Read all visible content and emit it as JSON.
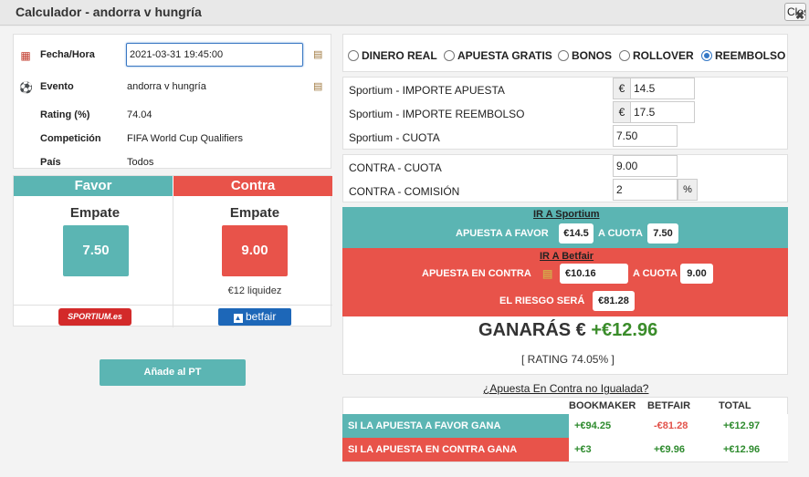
{
  "window": {
    "title": "Calculador - andorra v hungría",
    "close_label": "Close",
    "close_x": "✖"
  },
  "info": {
    "fecha_label": "Fecha/Hora",
    "fecha_value": "2021-03-31 19:45:00",
    "evento_label": "Evento",
    "evento_value": "andorra v hungría",
    "rating_label": "Rating (%)",
    "rating_value": "74.04",
    "competicion_label": "Competición",
    "competicion_value": "FIFA World Cup Qualifiers",
    "pais_label": "País",
    "pais_value": "Todos"
  },
  "favor": {
    "header": "Favor",
    "selection": "Empate",
    "odds": "7.50",
    "bookmaker_logo": "SPORTIUM.es"
  },
  "contra": {
    "header": "Contra",
    "selection": "Empate",
    "odds": "9.00",
    "liquidity": "€12 liquidez",
    "exchange_logo": "betfair"
  },
  "add_button": "Añade al PT",
  "bet_types": {
    "options": [
      "DINERO REAL",
      "APUESTA GRATIS",
      "BONOS",
      "ROLLOVER",
      "REEMBOLSO"
    ],
    "selected": "REEMBOLSO"
  },
  "bookmaker_inputs": {
    "stake_label": "Sportium - IMPORTE APUESTA",
    "stake_value": "14.5",
    "refund_label": "Sportium - IMPORTE REEMBOLSO",
    "refund_value": "17.5",
    "odds_label": "Sportium - CUOTA",
    "odds_value": "7.50",
    "currency": "€"
  },
  "exchange_inputs": {
    "odds_label": "CONTRA - CUOTA",
    "odds_value": "9.00",
    "commission_label": "CONTRA - COMISIÓN",
    "commission_value": "2",
    "percent": "%"
  },
  "sportium_band": {
    "link": "IR A Sportium",
    "favor_text": "APUESTA A FAVOR",
    "favor_amount": "€14.5",
    "cuota_text": "A CUOTA",
    "cuota_value": "7.50"
  },
  "betfair_band": {
    "link": "IR A Betfair",
    "contra_text": "APUESTA EN CONTRA",
    "contra_amount": "€10.16",
    "cuota_text": "A CUOTA",
    "cuota_value": "9.00",
    "risk_text": "EL RIESGO SERÁ",
    "risk_value": "€81.28"
  },
  "result": {
    "ganaras": "GANARÁS €",
    "profit": "+€12.96",
    "rating": "[ RATING 74.05% ]"
  },
  "unmatched_link": "¿Apuesta En Contra no Igualada?",
  "outcomes": {
    "headers": [
      "BOOKMAKER",
      "BETFAIR",
      "TOTAL"
    ],
    "rows": [
      {
        "label": "SI LA APUESTA A FAVOR GANA",
        "bookmaker": "+€94.25",
        "betfair": "-€81.28",
        "total": "+€12.97"
      },
      {
        "label": "SI LA APUESTA EN CONTRA GANA",
        "bookmaker": "+€3",
        "betfair": "+€9.96",
        "total": "+€12.96"
      }
    ]
  },
  "colors": {
    "teal": "#5bb5b3",
    "red": "#e8534a",
    "green": "#2e8b2e"
  }
}
